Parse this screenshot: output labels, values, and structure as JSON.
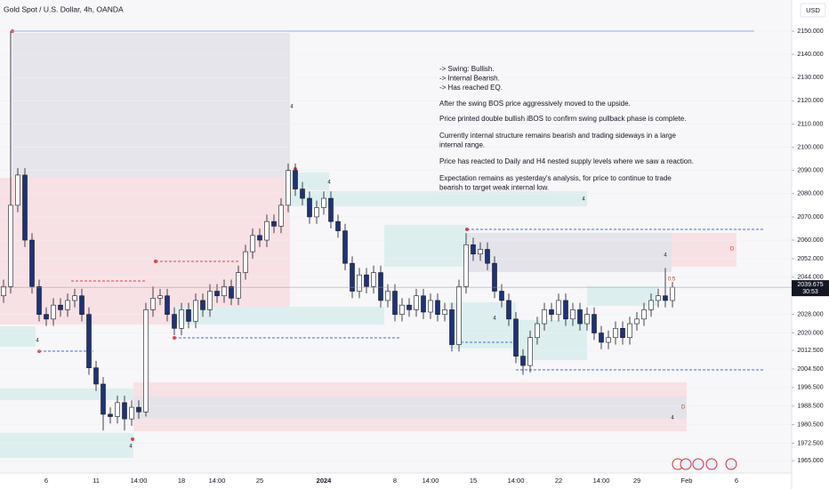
{
  "chart_data": {
    "type": "candlestick",
    "title": "Gold Spot / U.S. Dollar, 4h, OANDA",
    "currency": "USD",
    "categories": [
      null,
      null,
      null,
      null,
      null,
      null,
      "6",
      null,
      null,
      null,
      null,
      null,
      null,
      "11",
      null,
      null,
      null,
      null,
      null,
      "14:00",
      null,
      null,
      null,
      null,
      null,
      "18",
      null,
      null,
      null,
      null,
      "14:00",
      null,
      null,
      null,
      null,
      null,
      "25",
      null,
      null,
      null,
      null,
      null,
      null,
      null,
      null,
      "2024",
      null,
      null,
      null,
      null,
      null,
      null,
      null,
      null,
      null,
      "8",
      null,
      null,
      null,
      null,
      "14:00",
      null,
      null,
      null,
      null,
      null,
      "15",
      null,
      null,
      null,
      null,
      null,
      "14:00",
      null,
      null,
      null,
      null,
      null,
      "22",
      null,
      null,
      null,
      null,
      null,
      "14:00",
      null,
      null,
      null,
      null,
      "29",
      null,
      null,
      null,
      null,
      null,
      null,
      "Feb",
      null,
      null,
      null,
      null,
      null,
      null,
      "6"
    ],
    "open": [
      2036,
      2040,
      2075,
      2088,
      2060,
      2040,
      2028,
      2026,
      2032,
      2030,
      2034,
      2036,
      2028,
      2005,
      1998,
      1985,
      1984,
      1990,
      1983,
      1988,
      1986,
      2030,
      2035,
      2036,
      2028,
      2022,
      2030,
      2025,
      2034,
      2030,
      2038,
      2036,
      2040,
      2035,
      2046,
      2055,
      2062,
      2060,
      2068,
      2066,
      2075,
      2090,
      2082,
      2078,
      2070,
      2074,
      2078,
      2068,
      2064,
      2050,
      2038,
      2045,
      2040,
      2046,
      2034,
      2038,
      2028,
      2032,
      2030,
      2036,
      2029,
      2034,
      2028,
      2030,
      2015,
      2040,
      2058,
      2054,
      2056,
      2050,
      2038,
      2034,
      2026,
      2010,
      2006,
      2018,
      2024,
      2030,
      2028,
      2034,
      2026,
      2030,
      2024,
      2028,
      2020,
      2016,
      2018,
      2022,
      2018,
      2024,
      2026,
      2030,
      2034,
      2036,
      2034,
      null,
      null,
      null,
      null,
      null,
      null,
      null,
      null,
      null
    ],
    "high": [
      2043,
      2150,
      2091,
      2091,
      2063,
      2043,
      2031,
      2035,
      2035,
      2037,
      2039,
      2039,
      2031,
      2008,
      2001,
      1988,
      1993,
      1993,
      1991,
      1991,
      2033,
      2040,
      2039,
      2039,
      2031,
      2033,
      2033,
      2037,
      2037,
      2041,
      2041,
      2043,
      2043,
      2049,
      2058,
      2065,
      2065,
      2071,
      2071,
      2078,
      2093,
      2093,
      2085,
      2081,
      2077,
      2081,
      2081,
      2071,
      2067,
      2053,
      2048,
      2048,
      2049,
      2049,
      2041,
      2041,
      2035,
      2035,
      2039,
      2039,
      2037,
      2037,
      2033,
      2033,
      2043,
      2063,
      2061,
      2059,
      2059,
      2053,
      2041,
      2037,
      2029,
      2013,
      2021,
      2027,
      2033,
      2033,
      2037,
      2037,
      2033,
      2033,
      2031,
      2031,
      2023,
      2021,
      2025,
      2025,
      2027,
      2029,
      2033,
      2037,
      2039,
      2048,
      2042,
      null,
      null,
      null,
      null,
      null,
      null,
      null,
      null,
      null
    ],
    "low": [
      2033,
      2037,
      2072,
      2057,
      2037,
      2025,
      2023,
      2023,
      2027,
      2027,
      2031,
      2025,
      2002,
      1995,
      1978,
      1981,
      1981,
      1978,
      1980,
      1983,
      1984,
      2027,
      2032,
      2025,
      2019,
      2019,
      2022,
      2022,
      2027,
      2027,
      2033,
      2033,
      2032,
      2032,
      2043,
      2052,
      2057,
      2057,
      2063,
      2063,
      2072,
      2079,
      2075,
      2067,
      2067,
      2071,
      2065,
      2061,
      2047,
      2035,
      2035,
      2037,
      2037,
      2031,
      2031,
      2025,
      2025,
      2027,
      2027,
      2026,
      2026,
      2025,
      2025,
      2012,
      2012,
      2037,
      2051,
      2051,
      2047,
      2035,
      2031,
      2023,
      2007,
      2002,
      2003,
      2015,
      2021,
      2025,
      2025,
      2023,
      2023,
      2021,
      2021,
      2017,
      2013,
      2013,
      2015,
      2015,
      2015,
      2021,
      2023,
      2027,
      2031,
      2031,
      2031,
      null,
      null,
      null,
      null,
      null,
      null,
      null,
      null,
      null
    ],
    "close": [
      2040,
      2075,
      2088,
      2060,
      2040,
      2028,
      2026,
      2032,
      2030,
      2034,
      2036,
      2028,
      2005,
      1998,
      1985,
      1984,
      1990,
      1983,
      1988,
      1986,
      2030,
      2035,
      2036,
      2028,
      2022,
      2030,
      2025,
      2034,
      2030,
      2038,
      2036,
      2040,
      2035,
      2046,
      2055,
      2062,
      2060,
      2068,
      2066,
      2075,
      2090,
      2082,
      2078,
      2070,
      2074,
      2078,
      2068,
      2064,
      2050,
      2038,
      2045,
      2040,
      2046,
      2034,
      2038,
      2028,
      2032,
      2030,
      2036,
      2029,
      2034,
      2028,
      2030,
      2015,
      2040,
      2058,
      2054,
      2056,
      2050,
      2038,
      2034,
      2026,
      2010,
      2006,
      2018,
      2024,
      2030,
      2028,
      2034,
      2026,
      2030,
      2024,
      2028,
      2020,
      2016,
      2018,
      2022,
      2018,
      2024,
      2026,
      2030,
      2034,
      2036,
      2034,
      2039.675,
      null,
      null,
      null,
      null,
      null,
      null,
      null,
      null,
      null
    ],
    "up_color": "#ffffff",
    "down_color": "#1f3275",
    "ylim": [
      1959.7,
      2163.4
    ],
    "yticks": [
      {
        "value": 2150,
        "label": "2150.000"
      },
      {
        "value": 2140,
        "label": "2140.000"
      },
      {
        "value": 2130,
        "label": "2130.000"
      },
      {
        "value": 2120,
        "label": "2120.000"
      },
      {
        "value": 2110,
        "label": "2110.000"
      },
      {
        "value": 2100,
        "label": "2100.000"
      },
      {
        "value": 2090,
        "label": "2090.000"
      },
      {
        "value": 2080,
        "label": "2080.000"
      },
      {
        "value": 2070,
        "label": "2070.000"
      },
      {
        "value": 2060,
        "label": "2060.000"
      },
      {
        "value": 2052,
        "label": "2052.000"
      },
      {
        "value": 2044,
        "label": "2044.000"
      },
      {
        "value": 2028,
        "label": "2028.000"
      },
      {
        "value": 2020,
        "label": "2020.000"
      },
      {
        "value": 2012.5,
        "label": "2012.500"
      },
      {
        "value": 2004.5,
        "label": "2004.500"
      },
      {
        "value": 1996.5,
        "label": "1996.500"
      },
      {
        "value": 1988.5,
        "label": "1988.500"
      },
      {
        "value": 1980.5,
        "label": "1980.500"
      },
      {
        "value": 1972.5,
        "label": "1972.500"
      },
      {
        "value": 1965,
        "label": "1965.000"
      }
    ],
    "last_price": 2039.675,
    "countdown": "30:53",
    "annotation": [
      [
        "-> Swing: Bullish.",
        "-> Internal Bearish.",
        "-> Has reached EQ."
      ],
      [
        "After the swing BOS price aggressively moved to the upside."
      ],
      [
        "Price printed double bullish iBOS to confirm swing pullback phase is complete."
      ],
      [
        "Currently internal structure remains bearish and trading sideways in a large",
        "internal range."
      ],
      [
        "Price has reacted to Daily and H4 nested supply levels where we saw a reaction."
      ],
      [
        "Expectation remains as yesterday's analysis, for price to continue to trade",
        "bearish to target weak internal low."
      ]
    ],
    "markers": [
      "4",
      "4",
      "4",
      "4",
      "4",
      "4",
      "4",
      "4",
      "D",
      "D",
      "0.5"
    ]
  }
}
